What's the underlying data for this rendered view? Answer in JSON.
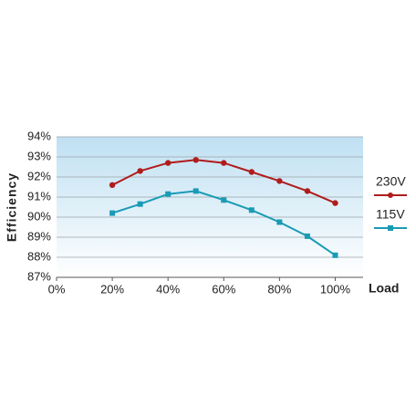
{
  "chart_data": {
    "type": "line",
    "x_label": "Load",
    "y_label": "Efficiency",
    "x": [
      20,
      30,
      40,
      50,
      60,
      70,
      80,
      90,
      100
    ],
    "series": [
      {
        "name": "230V",
        "color": "#b01c1c",
        "values": [
          91.6,
          92.3,
          92.7,
          92.85,
          92.7,
          92.25,
          91.8,
          91.3,
          90.7
        ]
      },
      {
        "name": "115V",
        "color": "#1a9bb5",
        "values": [
          90.2,
          90.65,
          91.15,
          91.3,
          90.85,
          90.35,
          89.75,
          89.05,
          88.1
        ]
      }
    ],
    "xlim": [
      0,
      110
    ],
    "xticks": [
      {
        "value": 0,
        "label": "0%"
      },
      {
        "value": 20,
        "label": "20%"
      },
      {
        "value": 40,
        "label": "40%"
      },
      {
        "value": 60,
        "label": "60%"
      },
      {
        "value": 80,
        "label": "80%"
      },
      {
        "value": 100,
        "label": "100%"
      }
    ],
    "ylim": [
      87,
      94
    ],
    "yticks": [
      {
        "value": 87,
        "label": "87%"
      },
      {
        "value": 88,
        "label": "88%"
      },
      {
        "value": 89,
        "label": "89%"
      },
      {
        "value": 90,
        "label": "90%"
      },
      {
        "value": 91,
        "label": "91%"
      },
      {
        "value": 92,
        "label": "92%"
      },
      {
        "value": 93,
        "label": "93%"
      },
      {
        "value": 94,
        "label": "94%"
      }
    ],
    "grid": true
  }
}
